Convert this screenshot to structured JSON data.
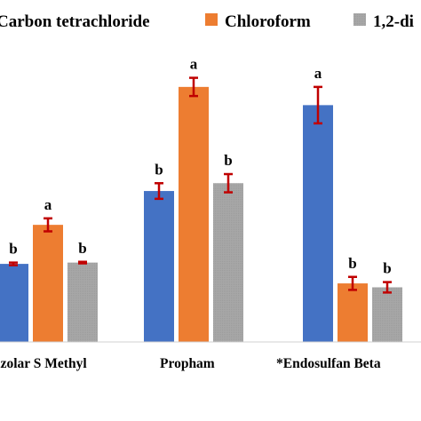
{
  "chart_data": {
    "type": "bar",
    "title": "",
    "xlabel": "",
    "ylabel": "",
    "ylim": [
      0,
      100
    ],
    "grid": false,
    "legend_position": "top",
    "categories": [
      "nzolar S Methyl",
      "Propham",
      "*Endosulfan Beta"
    ],
    "series": [
      {
        "name": "Carbon tetrachloride",
        "color": "#4472C4",
        "values": [
          30.0,
          58.0,
          91.0
        ],
        "errors": [
          0.5,
          3.0,
          7.0
        ],
        "significance": [
          "b",
          "b",
          "a"
        ]
      },
      {
        "name": "Chloroform",
        "color": "#ED7D31",
        "values": [
          45.0,
          98.0,
          22.5
        ],
        "errors": [
          2.5,
          3.5,
          2.5
        ],
        "significance": [
          "a",
          "a",
          "b"
        ]
      },
      {
        "name": "1,2-di",
        "color": "#A5A5A5",
        "values": [
          30.5,
          61.0,
          21.0
        ],
        "errors": [
          0.3,
          3.5,
          2.0
        ],
        "significance": [
          "b",
          "b",
          "b"
        ]
      }
    ],
    "error_bar_color": "#C00000"
  }
}
